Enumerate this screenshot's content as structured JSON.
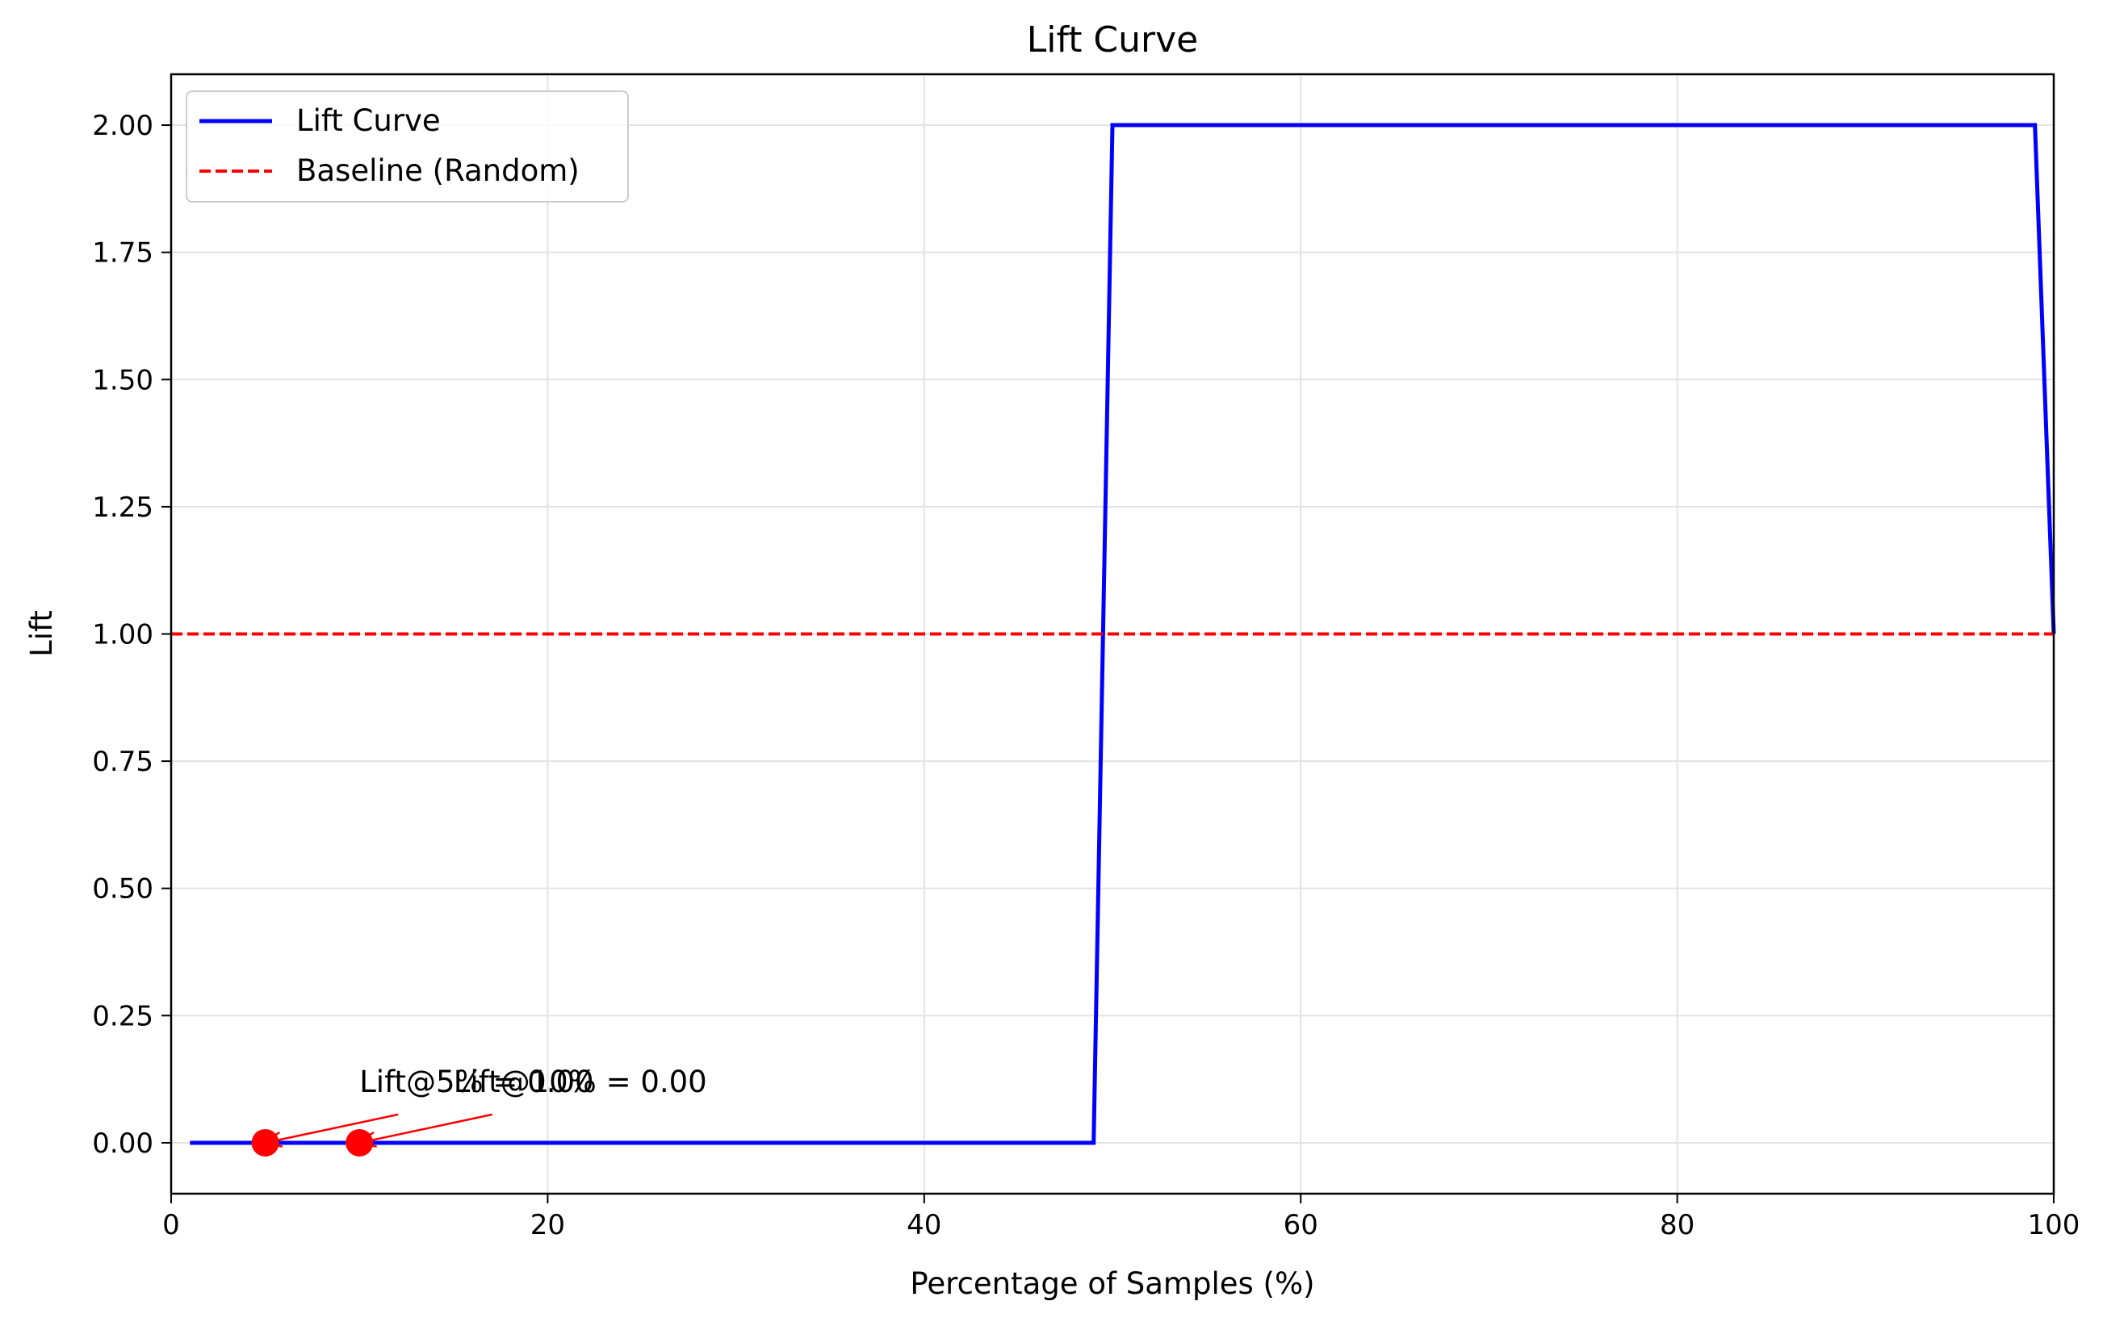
{
  "chart_data": {
    "type": "line",
    "title": "Lift Curve",
    "xlabel": "Percentage of Samples (%)",
    "ylabel": "Lift",
    "xlim": [
      0,
      100
    ],
    "ylim": [
      -0.1,
      2.1
    ],
    "xticks": [
      0,
      20,
      40,
      60,
      80,
      100
    ],
    "xtick_labels": [
      "0",
      "20",
      "40",
      "60",
      "80",
      "100"
    ],
    "yticks": [
      0,
      0.25,
      0.5,
      0.75,
      1.0,
      1.25,
      1.5,
      1.75,
      2.0
    ],
    "ytick_labels": [
      "0.00",
      "0.25",
      "0.50",
      "0.75",
      "1.00",
      "1.25",
      "1.50",
      "1.75",
      "2.00"
    ],
    "grid": true,
    "legend_position": "upper-left",
    "series": [
      {
        "name": "Lift Curve",
        "style": "solid",
        "color": "#0000ff",
        "x": [
          1,
          49,
          50,
          99,
          100
        ],
        "y": [
          0,
          0,
          2,
          2,
          1
        ]
      },
      {
        "name": "Baseline (Random)",
        "style": "dashed",
        "color": "#ff0000",
        "x": [
          0,
          100
        ],
        "y": [
          1,
          1
        ]
      }
    ],
    "markers": [
      {
        "x": 5,
        "y": 0,
        "color": "#ff0000"
      },
      {
        "x": 10,
        "y": 0,
        "color": "#ff0000"
      }
    ],
    "annotations": [
      {
        "text": "Lift@5% = 0.00",
        "x": 5,
        "y": 0,
        "text_x": 10,
        "text_y": 0.1
      },
      {
        "text": "Lift@10% = 0.00",
        "x": 10,
        "y": 0,
        "text_x": 15,
        "text_y": 0.1
      }
    ]
  }
}
